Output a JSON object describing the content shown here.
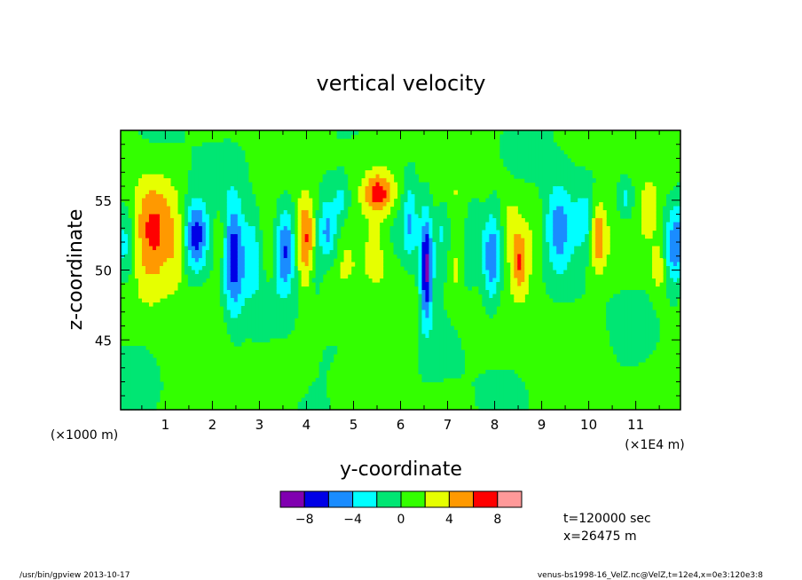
{
  "chart_data": {
    "type": "heatmap",
    "title": "vertical velocity",
    "xlabel": "y-coordinate",
    "ylabel": "z-coordinate",
    "x_unit_left": "(×1000 m)",
    "x_unit_right": "(×1E4 m)",
    "xlim": [
      0.05,
      11.95
    ],
    "ylim": [
      40,
      60
    ],
    "x_ticks": [
      "1",
      "2",
      "3",
      "4",
      "5",
      "6",
      "7",
      "8",
      "9",
      "10",
      "11"
    ],
    "y_ticks": [
      "45",
      "50",
      "55"
    ],
    "colorbar": {
      "levels": [
        -10,
        -8,
        -6,
        -4,
        -2,
        0,
        2,
        4,
        6,
        8,
        10
      ],
      "colors": [
        "#8000b0",
        "#0000e6",
        "#1a8cff",
        "#00ffff",
        "#00e673",
        "#33ff00",
        "#e6ff00",
        "#ff9900",
        "#ff0000",
        "#ff9999"
      ],
      "tick_labels": [
        "-8",
        "-4",
        "0",
        "4",
        "8"
      ],
      "tick_values": [
        -8,
        -4,
        0,
        4,
        8
      ]
    },
    "features": [
      {
        "y": 0.75,
        "z": 52.5,
        "wy": 0.45,
        "wz": 4.0,
        "amp": 4.5
      },
      {
        "y": 0.15,
        "z": 52.0,
        "wy": 0.25,
        "wz": 3.0,
        "amp": -4.0
      },
      {
        "y": 1.65,
        "z": 52.5,
        "wy": 0.25,
        "wz": 2.5,
        "amp": -7.5
      },
      {
        "y": 1.25,
        "z": 51.0,
        "wy": 0.18,
        "wz": 2.5,
        "amp": 2.0
      },
      {
        "y": 2.45,
        "z": 51.0,
        "wy": 0.22,
        "wz": 4.0,
        "amp": -8.0
      },
      {
        "y": 2.85,
        "z": 51.5,
        "wy": 0.2,
        "wz": 3.0,
        "amp": -4.0
      },
      {
        "y": 2.15,
        "z": 52.0,
        "wy": 0.15,
        "wz": 2.0,
        "amp": 2.5
      },
      {
        "y": 3.55,
        "z": 51.5,
        "wy": 0.22,
        "wz": 3.0,
        "amp": -7.0
      },
      {
        "y": 3.2,
        "z": 51.0,
        "wy": 0.15,
        "wz": 2.5,
        "amp": 2.0
      },
      {
        "y": 3.98,
        "z": 52.5,
        "wy": 0.2,
        "wz": 3.0,
        "amp": 5.0
      },
      {
        "y": 4.45,
        "z": 52.5,
        "wy": 0.22,
        "wz": 2.5,
        "amp": -6.5
      },
      {
        "y": 4.2,
        "z": 50.0,
        "wy": 0.15,
        "wz": 2.0,
        "amp": -3.0
      },
      {
        "y": 5.55,
        "z": 55.5,
        "wy": 0.35,
        "wz": 1.5,
        "amp": 6.5
      },
      {
        "y": 5.5,
        "z": 52.0,
        "wy": 0.3,
        "wz": 3.0,
        "amp": 2.5
      },
      {
        "y": 4.75,
        "z": 55.0,
        "wy": 0.15,
        "wz": 1.5,
        "amp": -3.0
      },
      {
        "y": 6.55,
        "z": 50.0,
        "wy": 0.14,
        "wz": 4.0,
        "amp": -9.0
      },
      {
        "y": 6.2,
        "z": 53.5,
        "wy": 0.15,
        "wz": 3.0,
        "amp": -3.5
      },
      {
        "y": 6.9,
        "z": 53.0,
        "wy": 0.15,
        "wz": 2.5,
        "amp": -3.0
      },
      {
        "y": 7.15,
        "z": 50.0,
        "wy": 0.15,
        "wz": 2.5,
        "amp": 2.5
      },
      {
        "y": 7.55,
        "z": 53.5,
        "wy": 0.2,
        "wz": 2.5,
        "amp": -3.0
      },
      {
        "y": 7.95,
        "z": 51.0,
        "wy": 0.2,
        "wz": 3.5,
        "amp": -6.5
      },
      {
        "y": 8.55,
        "z": 50.5,
        "wy": 0.15,
        "wz": 2.0,
        "amp": 4.5
      },
      {
        "y": 8.35,
        "z": 53.0,
        "wy": 0.15,
        "wz": 2.0,
        "amp": 2.0
      },
      {
        "y": 9.35,
        "z": 53.0,
        "wy": 0.3,
        "wz": 3.0,
        "amp": -6.0
      },
      {
        "y": 9.9,
        "z": 53.5,
        "wy": 0.2,
        "wz": 2.0,
        "amp": -3.5
      },
      {
        "y": 10.2,
        "z": 52.5,
        "wy": 0.18,
        "wz": 2.5,
        "amp": 5.5
      },
      {
        "y": 10.8,
        "z": 55.0,
        "wy": 0.15,
        "wz": 1.5,
        "amp": -3.5
      },
      {
        "y": 11.3,
        "z": 54.5,
        "wy": 0.15,
        "wz": 1.5,
        "amp": 2.5
      },
      {
        "y": 11.85,
        "z": 51.5,
        "wy": 0.25,
        "wz": 3.0,
        "amp": -7.0
      },
      {
        "y": 11.5,
        "z": 50.0,
        "wy": 0.15,
        "wz": 2.0,
        "amp": 2.5
      }
    ]
  },
  "info": {
    "time": "t=120000 sec",
    "position": "x=26475 m"
  },
  "footer": {
    "left": "/usr/bin/gpview   2013-10-17",
    "right": "venus-bs1998-16_VelZ.nc@VelZ,t=12e4,x=0e3:120e3:8"
  }
}
